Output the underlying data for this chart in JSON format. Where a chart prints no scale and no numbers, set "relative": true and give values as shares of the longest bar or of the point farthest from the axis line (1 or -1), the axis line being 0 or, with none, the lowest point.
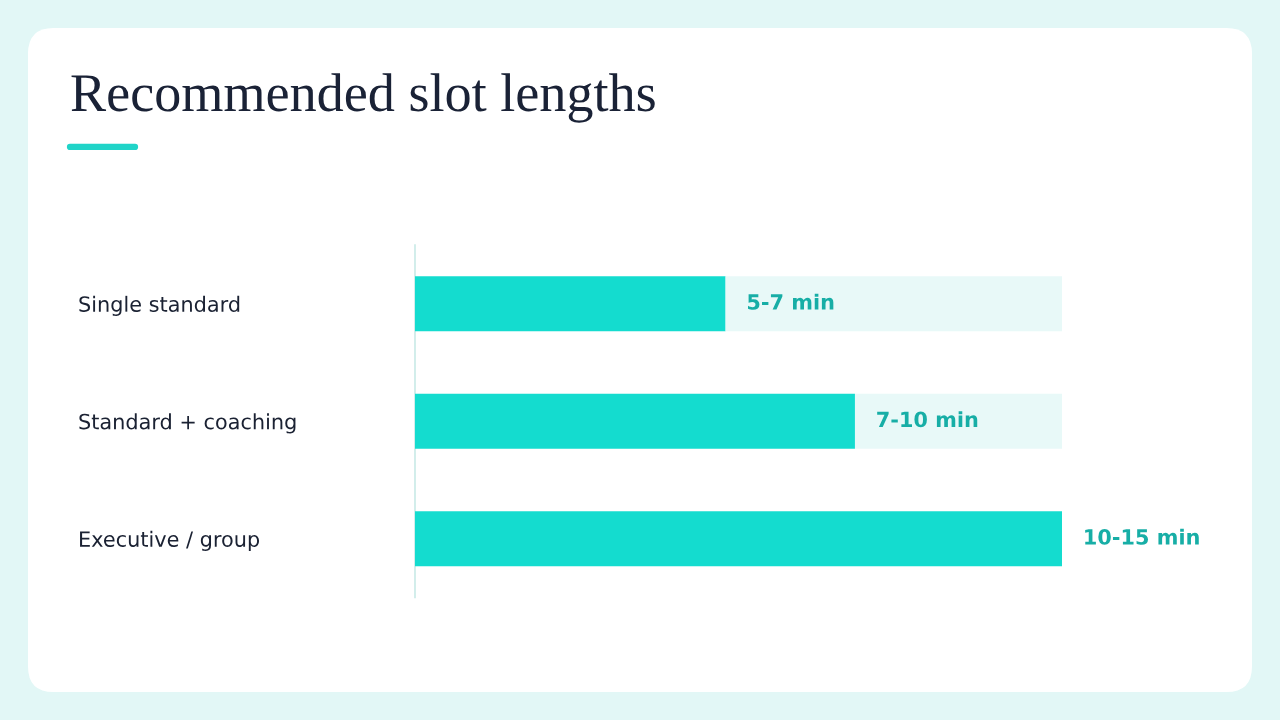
{
  "chart_data": {
    "type": "bar",
    "orientation": "horizontal",
    "stacked": true,
    "relative": true,
    "title": "Recommended slot lengths",
    "categories": [
      "Single standard",
      "Standard + coaching",
      "Executive / group"
    ],
    "series": [
      {
        "color": "#14dccf",
        "values": [
          0.48,
          0.68,
          1.0
        ]
      },
      {
        "color": "#e8f9f8",
        "values": [
          0.52,
          0.32,
          null
        ]
      }
    ],
    "annotations": [
      {
        "text": "5-7 min",
        "x": 0.48,
        "y": "Single standard"
      },
      {
        "text": "7-10 min",
        "x": 0.68,
        "y": "Standard + coaching"
      },
      {
        "text": "10-15 min",
        "x": 1.0,
        "y": "Executive / group"
      }
    ]
  }
}
